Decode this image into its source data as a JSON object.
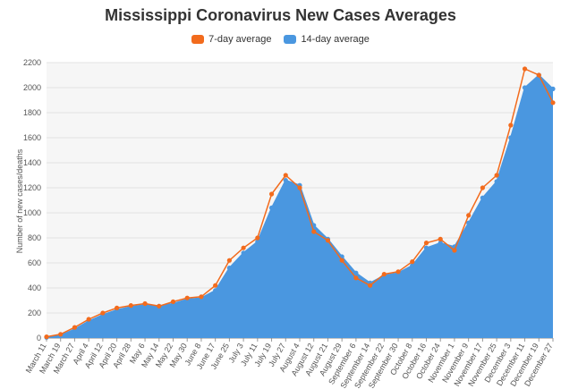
{
  "chart_data": {
    "type": "area",
    "title": "Mississippi Coronavirus New Cases Averages",
    "ylabel": "Number of new cases/deaths",
    "xlabel": "",
    "ylim": [
      0,
      2200
    ],
    "yticks": [
      0,
      200,
      400,
      600,
      800,
      1000,
      1200,
      1400,
      1600,
      1800,
      2000,
      2200
    ],
    "grid": true,
    "legend_position": "top-center",
    "x_tick_labels": [
      "March 11",
      "March 19",
      "March 27",
      "April 4",
      "April 12",
      "April 20",
      "April 28",
      "May 6",
      "May 14",
      "May 22",
      "May 30",
      "June 8",
      "June 17",
      "June 25",
      "July 3",
      "July 11",
      "July 19",
      "July 27",
      "August 4",
      "August 12",
      "August 21",
      "August 29",
      "September 6",
      "September 14",
      "September 22",
      "September 30",
      "October 8",
      "October 16",
      "October 24",
      "November 1",
      "November 9",
      "November 17",
      "November 25",
      "December 3",
      "December 11",
      "December 19",
      "December 27"
    ],
    "x": [
      "Mar 11",
      "Mar 19",
      "Mar 27",
      "Apr 4",
      "Apr 12",
      "Apr 20",
      "Apr 28",
      "May 6",
      "May 14",
      "May 22",
      "May 30",
      "Jun 8",
      "Jun 17",
      "Jun 25",
      "Jul 3",
      "Jul 11",
      "Jul 19",
      "Jul 27",
      "Aug 4",
      "Aug 12",
      "Aug 21",
      "Aug 29",
      "Sep 6",
      "Sep 14",
      "Sep 22",
      "Sep 30",
      "Oct 8",
      "Oct 16",
      "Oct 24",
      "Nov 1",
      "Nov 9",
      "Nov 17",
      "Nov 25",
      "Dec 3",
      "Dec 11",
      "Dec 19",
      "Dec 27"
    ],
    "series": [
      {
        "name": "7-day average",
        "color": "#f26b1d",
        "values": [
          10,
          30,
          85,
          150,
          200,
          240,
          260,
          275,
          255,
          290,
          320,
          330,
          420,
          620,
          720,
          800,
          1150,
          1300,
          1200,
          850,
          780,
          620,
          480,
          420,
          510,
          530,
          610,
          760,
          790,
          700,
          980,
          1200,
          1300,
          1700,
          2150,
          2100,
          1880
        ]
      },
      {
        "name": "14-day average",
        "color": "#4a97e0",
        "values": [
          5,
          22,
          70,
          135,
          185,
          225,
          250,
          265,
          255,
          275,
          310,
          320,
          380,
          560,
          680,
          770,
          1040,
          1260,
          1220,
          900,
          790,
          650,
          520,
          440,
          500,
          520,
          580,
          720,
          760,
          730,
          920,
          1120,
          1250,
          1600,
          2000,
          2100,
          1990
        ]
      }
    ]
  }
}
